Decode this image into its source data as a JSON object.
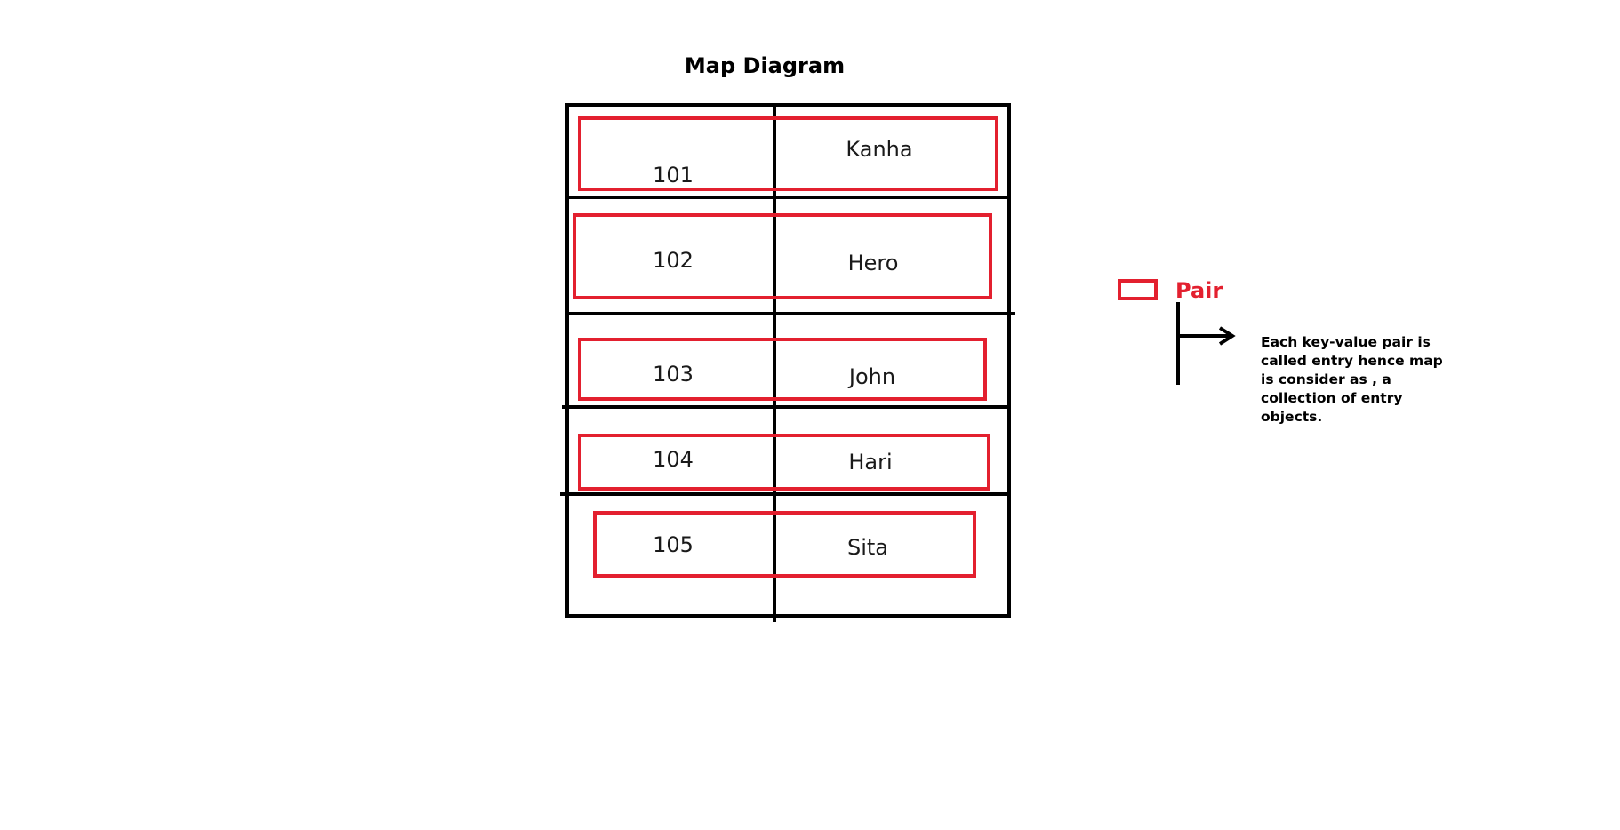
{
  "title": "Map Diagram",
  "entries": [
    {
      "key": "101",
      "value": "Kanha"
    },
    {
      "key": "102",
      "value": "Hero"
    },
    {
      "key": "103",
      "value": "John"
    },
    {
      "key": "104",
      "value": "Hari"
    },
    {
      "key": "105",
      "value": "Sita"
    }
  ],
  "legend": {
    "label": "Pair",
    "note": "Each key-value pair is called entry hence map is consider as , a collection of entry objects."
  },
  "colors": {
    "pair_outline": "#e3202f",
    "table_lines": "#000000"
  }
}
